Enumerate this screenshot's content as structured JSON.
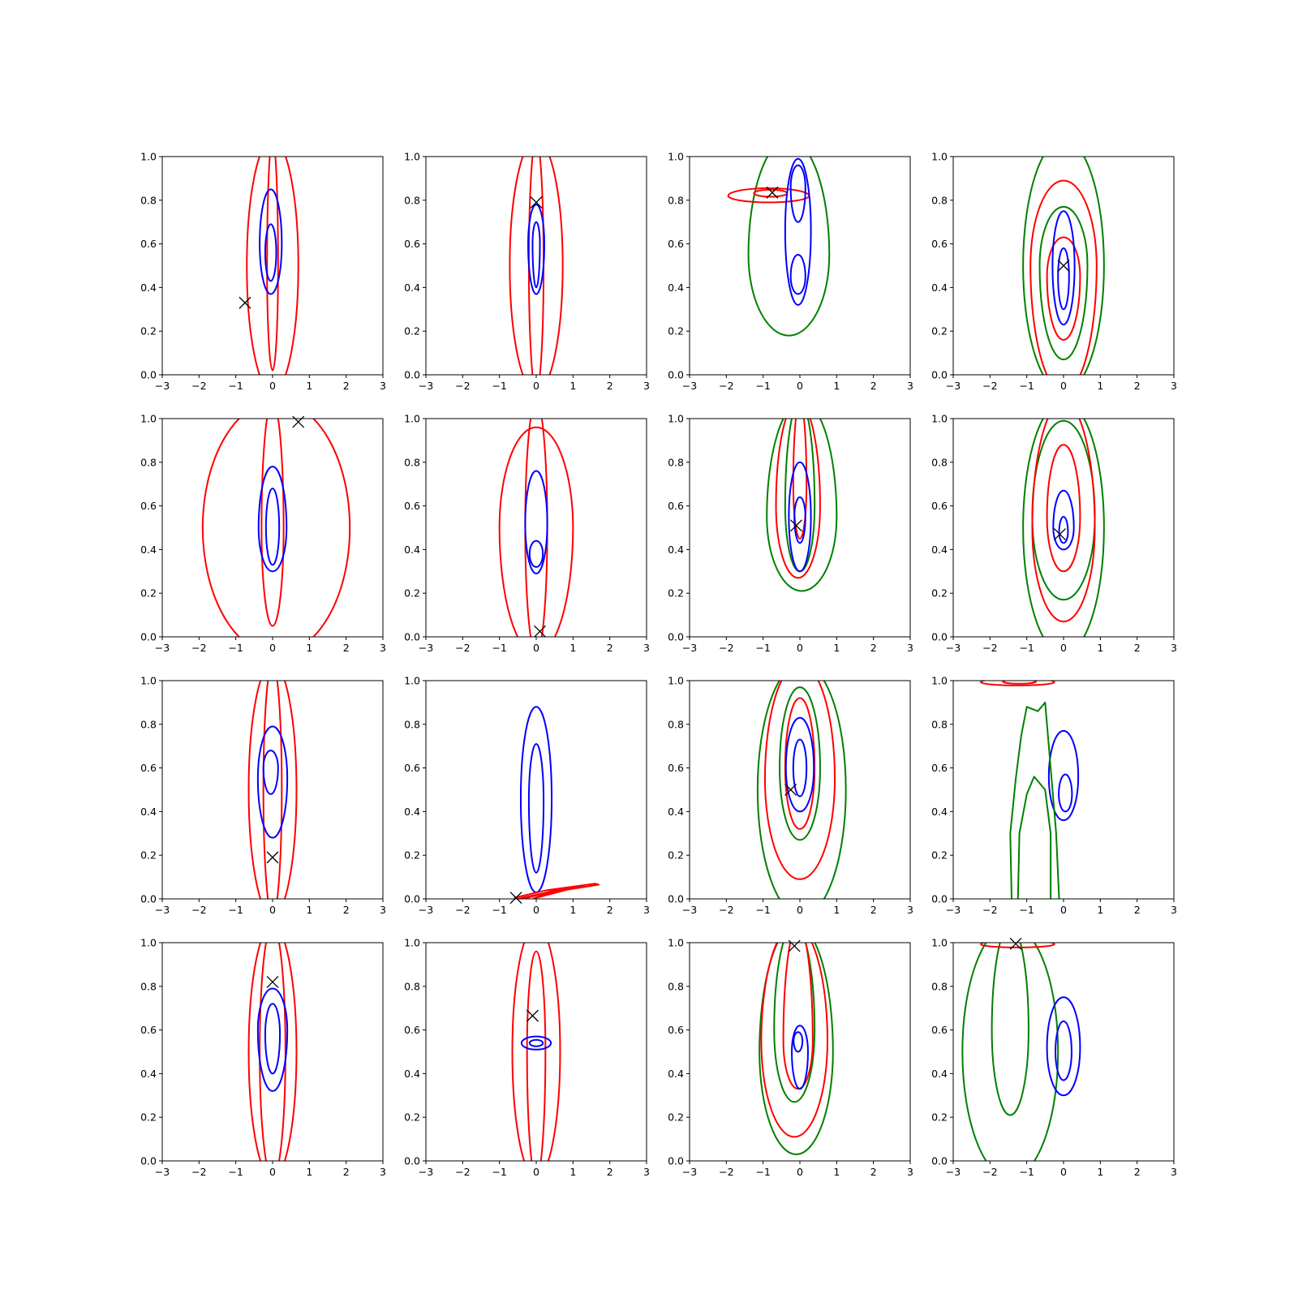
{
  "chart_data": {
    "type": "contour",
    "grid": {
      "rows": 4,
      "cols": 4
    },
    "xlim": [
      -3,
      3
    ],
    "ylim": [
      0,
      1
    ],
    "xticks": [
      "−3",
      "−2",
      "−1",
      "0",
      "1",
      "2",
      "3"
    ],
    "yticks": [
      "0.0",
      "0.2",
      "0.4",
      "0.6",
      "0.8",
      "1.0"
    ],
    "colors": {
      "red": "#ff0000",
      "blue": "#0000ff",
      "green": "#008000",
      "marker": "#000000"
    },
    "panels": [
      {
        "marker": [
          -0.75,
          0.33
        ],
        "contours": [
          {
            "color": "red",
            "cx": 0.0,
            "cy": 0.5,
            "hw": 0.7,
            "top": 1.08,
            "bottom": -0.08
          },
          {
            "color": "red",
            "cx": 0.0,
            "cy": 0.5,
            "hw": 0.15,
            "top": 1.08,
            "bottom": 0.02
          },
          {
            "color": "blue",
            "cx": -0.05,
            "cy": 0.6,
            "hw": 0.3,
            "top": 0.85,
            "bottom": 0.37
          },
          {
            "color": "blue",
            "cx": -0.05,
            "cy": 0.56,
            "hw": 0.15,
            "top": 0.69,
            "bottom": 0.43
          }
        ]
      },
      {
        "marker": [
          0.0,
          0.79
        ],
        "contours": [
          {
            "color": "red",
            "cx": 0.0,
            "cy": 0.5,
            "hw": 0.72,
            "top": 1.08,
            "bottom": -0.08
          },
          {
            "color": "red",
            "cx": 0.0,
            "cy": 0.5,
            "hw": 0.2,
            "top": 1.08,
            "bottom": -0.08
          },
          {
            "color": "blue",
            "cx": 0.0,
            "cy": 0.6,
            "hw": 0.22,
            "top": 0.78,
            "bottom": 0.37
          },
          {
            "color": "blue",
            "cx": 0.0,
            "cy": 0.6,
            "hw": 0.1,
            "top": 0.7,
            "bottom": 0.4
          }
        ]
      },
      {
        "marker": [
          -0.75,
          0.835
        ],
        "contours": [
          {
            "color": "green",
            "cx": -0.3,
            "cy": 0.55,
            "hw": 1.1,
            "top": 1.08,
            "bottom": 0.18
          },
          {
            "color": "red",
            "cx": -0.85,
            "cy": 0.82,
            "hw": 1.1,
            "top": 0.855,
            "bottom": 0.79
          },
          {
            "color": "red",
            "cx": -0.8,
            "cy": 0.832,
            "hw": 0.45,
            "top": 0.848,
            "bottom": 0.816
          },
          {
            "color": "blue",
            "cx": -0.05,
            "cy": 0.66,
            "hw": 0.35,
            "top": 0.99,
            "bottom": 0.32
          },
          {
            "color": "blue",
            "cx": -0.05,
            "cy": 0.86,
            "hw": 0.2,
            "top": 0.96,
            "bottom": 0.7
          },
          {
            "color": "blue",
            "cx": -0.05,
            "cy": 0.45,
            "hw": 0.2,
            "top": 0.55,
            "bottom": 0.37
          }
        ]
      },
      {
        "marker": [
          0.0,
          0.5
        ],
        "contours": [
          {
            "color": "green",
            "cx": 0.0,
            "cy": 0.5,
            "hw": 1.1,
            "top": 1.08,
            "bottom": -0.08
          },
          {
            "color": "red",
            "cx": 0.0,
            "cy": 0.5,
            "hw": 0.9,
            "top": 0.89,
            "bottom": -0.08
          },
          {
            "color": "green",
            "cx": 0.0,
            "cy": 0.5,
            "hw": 0.65,
            "top": 0.77,
            "bottom": 0.07
          },
          {
            "color": "red",
            "cx": 0.0,
            "cy": 0.45,
            "hw": 0.45,
            "top": 0.63,
            "bottom": 0.16
          },
          {
            "color": "blue",
            "cx": 0.0,
            "cy": 0.5,
            "hw": 0.3,
            "top": 0.75,
            "bottom": 0.23
          },
          {
            "color": "blue",
            "cx": 0.0,
            "cy": 0.45,
            "hw": 0.15,
            "top": 0.58,
            "bottom": 0.3
          }
        ]
      },
      {
        "marker": [
          0.7,
          0.985
        ],
        "contours": [
          {
            "color": "red",
            "cx": 0.1,
            "cy": 0.5,
            "hw": 2.0,
            "top": 1.08,
            "bottom": -0.08
          },
          {
            "color": "red",
            "cx": 0.0,
            "cy": 0.5,
            "hw": 0.3,
            "top": 1.08,
            "bottom": 0.05
          },
          {
            "color": "blue",
            "cx": 0.0,
            "cy": 0.5,
            "hw": 0.38,
            "top": 0.78,
            "bottom": 0.3
          },
          {
            "color": "blue",
            "cx": 0.0,
            "cy": 0.5,
            "hw": 0.18,
            "top": 0.68,
            "bottom": 0.33
          }
        ]
      },
      {
        "marker": [
          0.1,
          0.025
        ],
        "contours": [
          {
            "color": "red",
            "cx": 0.0,
            "cy": 0.5,
            "hw": 1.0,
            "top": 0.96,
            "bottom": -0.08
          },
          {
            "color": "red",
            "cx": 0.0,
            "cy": 0.5,
            "hw": 0.3,
            "top": 1.08,
            "bottom": -0.08
          },
          {
            "color": "blue",
            "cx": 0.0,
            "cy": 0.52,
            "hw": 0.3,
            "top": 0.76,
            "bottom": 0.29
          },
          {
            "color": "blue",
            "cx": 0.0,
            "cy": 0.38,
            "hw": 0.18,
            "top": 0.44,
            "bottom": 0.32
          }
        ]
      },
      {
        "marker": [
          -0.1,
          0.51
        ],
        "contours": [
          {
            "color": "green",
            "cx": 0.05,
            "cy": 0.55,
            "hw": 0.95,
            "top": 1.08,
            "bottom": 0.21
          },
          {
            "color": "red",
            "cx": -0.05,
            "cy": 0.6,
            "hw": 0.6,
            "top": 1.08,
            "bottom": 0.27
          },
          {
            "color": "green",
            "cx": 0.0,
            "cy": 0.6,
            "hw": 0.4,
            "top": 1.08,
            "bottom": 0.3
          },
          {
            "color": "red",
            "cx": 0.0,
            "cy": 0.7,
            "hw": 0.18,
            "top": 1.08,
            "bottom": 0.45
          },
          {
            "color": "blue",
            "cx": 0.0,
            "cy": 0.55,
            "hw": 0.3,
            "top": 0.8,
            "bottom": 0.3
          },
          {
            "color": "blue",
            "cx": 0.0,
            "cy": 0.55,
            "hw": 0.15,
            "top": 0.64,
            "bottom": 0.43
          }
        ]
      },
      {
        "marker": [
          -0.1,
          0.47
        ],
        "contours": [
          {
            "color": "green",
            "cx": 0.0,
            "cy": 0.5,
            "hw": 1.1,
            "top": 1.08,
            "bottom": -0.08
          },
          {
            "color": "green",
            "cx": 0.0,
            "cy": 0.55,
            "hw": 0.85,
            "top": 0.99,
            "bottom": 0.17
          },
          {
            "color": "red",
            "cx": 0.0,
            "cy": 0.5,
            "hw": 0.85,
            "top": 1.08,
            "bottom": 0.07
          },
          {
            "color": "red",
            "cx": 0.0,
            "cy": 0.55,
            "hw": 0.45,
            "top": 0.88,
            "bottom": 0.3
          },
          {
            "color": "blue",
            "cx": 0.0,
            "cy": 0.5,
            "hw": 0.28,
            "top": 0.67,
            "bottom": 0.4
          },
          {
            "color": "blue",
            "cx": 0.0,
            "cy": 0.48,
            "hw": 0.12,
            "top": 0.55,
            "bottom": 0.43
          }
        ]
      },
      {
        "marker": [
          0.0,
          0.19
        ],
        "contours": [
          {
            "color": "red",
            "cx": 0.0,
            "cy": 0.5,
            "hw": 0.65,
            "top": 1.08,
            "bottom": -0.08
          },
          {
            "color": "red",
            "cx": 0.0,
            "cy": 0.5,
            "hw": 0.25,
            "top": 1.08,
            "bottom": -0.08
          },
          {
            "color": "blue",
            "cx": 0.0,
            "cy": 0.55,
            "hw": 0.4,
            "top": 0.79,
            "bottom": 0.28
          },
          {
            "color": "blue",
            "cx": -0.05,
            "cy": 0.6,
            "hw": 0.2,
            "top": 0.68,
            "bottom": 0.48
          }
        ]
      },
      {
        "marker": [
          -0.55,
          0.005
        ],
        "contours": [
          {
            "color": "blue",
            "cx": 0.0,
            "cy": 0.46,
            "hw": 0.42,
            "top": 0.88,
            "bottom": 0.03
          },
          {
            "color": "blue",
            "cx": 0.0,
            "cy": 0.45,
            "hw": 0.2,
            "top": 0.71,
            "bottom": 0.12
          }
        ],
        "segments": [
          {
            "color": "red",
            "points": [
              [
                -0.6,
                0.005
              ],
              [
                0.3,
                0.04
              ],
              [
                1.6,
                0.07
              ],
              [
                1.7,
                0.065
              ],
              [
                0.2,
                0.025
              ],
              [
                -0.5,
                0.0
              ]
            ]
          },
          {
            "color": "red",
            "points": [
              [
                -0.4,
                0.005
              ],
              [
                0.6,
                0.04
              ],
              [
                1.3,
                0.06
              ],
              [
                0.4,
                0.035
              ],
              [
                -0.3,
                0.002
              ]
            ]
          },
          {
            "color": "red",
            "points": [
              [
                0.0,
                0.005
              ],
              [
                0.8,
                0.04
              ],
              [
                0.2,
                0.02
              ],
              [
                -0.1,
                0.0
              ]
            ]
          }
        ]
      },
      {
        "marker": [
          -0.25,
          0.5
        ],
        "contours": [
          {
            "color": "green",
            "cx": 0.05,
            "cy": 0.5,
            "hw": 1.2,
            "top": 1.08,
            "bottom": -0.08
          },
          {
            "color": "red",
            "cx": 0.0,
            "cy": 0.55,
            "hw": 0.95,
            "top": 1.08,
            "bottom": 0.09
          },
          {
            "color": "green",
            "cx": 0.0,
            "cy": 0.6,
            "hw": 0.55,
            "top": 0.97,
            "bottom": 0.27
          },
          {
            "color": "red",
            "cx": 0.0,
            "cy": 0.6,
            "hw": 0.4,
            "top": 0.92,
            "bottom": 0.32
          },
          {
            "color": "blue",
            "cx": 0.0,
            "cy": 0.6,
            "hw": 0.38,
            "top": 0.83,
            "bottom": 0.4
          },
          {
            "color": "blue",
            "cx": 0.0,
            "cy": 0.6,
            "hw": 0.18,
            "top": 0.73,
            "bottom": 0.47
          }
        ]
      },
      {
        "marker": null,
        "contours": [
          {
            "color": "red",
            "cx": -1.25,
            "cy": 0.993,
            "hw": 1.0,
            "top": 1.012,
            "bottom": 0.978
          },
          {
            "color": "red",
            "cx": -1.2,
            "cy": 0.996,
            "hw": 0.45,
            "top": 1.006,
            "bottom": 0.986
          },
          {
            "color": "blue",
            "cx": 0.0,
            "cy": 0.56,
            "hw": 0.4,
            "top": 0.77,
            "bottom": 0.36
          },
          {
            "color": "blue",
            "cx": 0.05,
            "cy": 0.48,
            "hw": 0.18,
            "top": 0.57,
            "bottom": 0.4
          }
        ],
        "segments": [
          {
            "color": "green",
            "points": [
              [
                -1.4,
                -0.08
              ],
              [
                -1.45,
                0.3
              ],
              [
                -1.3,
                0.55
              ],
              [
                -1.15,
                0.75
              ],
              [
                -1.0,
                0.88
              ],
              [
                -0.7,
                0.86
              ],
              [
                -0.5,
                0.9
              ],
              [
                -0.35,
                0.6
              ],
              [
                -0.2,
                0.3
              ],
              [
                -0.1,
                -0.08
              ]
            ]
          },
          {
            "color": "green",
            "points": [
              [
                -1.25,
                -0.08
              ],
              [
                -1.2,
                0.3
              ],
              [
                -1.0,
                0.48
              ],
              [
                -0.8,
                0.56
              ],
              [
                -0.5,
                0.5
              ],
              [
                -0.35,
                0.3
              ],
              [
                -0.35,
                -0.08
              ]
            ]
          }
        ]
      },
      {
        "marker": [
          0.0,
          0.82
        ],
        "contours": [
          {
            "color": "red",
            "cx": 0.0,
            "cy": 0.5,
            "hw": 0.65,
            "top": 1.08,
            "bottom": -0.08
          },
          {
            "color": "red",
            "cx": 0.0,
            "cy": 0.5,
            "hw": 0.35,
            "top": 1.08,
            "bottom": -0.08
          },
          {
            "color": "blue",
            "cx": 0.0,
            "cy": 0.6,
            "hw": 0.4,
            "top": 0.79,
            "bottom": 0.32
          },
          {
            "color": "blue",
            "cx": 0.0,
            "cy": 0.58,
            "hw": 0.2,
            "top": 0.72,
            "bottom": 0.4
          }
        ]
      },
      {
        "marker": [
          -0.1,
          0.665
        ],
        "contours": [
          {
            "color": "red",
            "cx": 0.0,
            "cy": 0.5,
            "hw": 0.65,
            "top": 1.08,
            "bottom": -0.08
          },
          {
            "color": "red",
            "cx": 0.0,
            "cy": 0.5,
            "hw": 0.25,
            "top": 0.96,
            "bottom": -0.08
          },
          {
            "color": "blue",
            "cx": 0.0,
            "cy": 0.54,
            "hw": 0.4,
            "top": 0.57,
            "bottom": 0.51
          },
          {
            "color": "blue",
            "cx": 0.0,
            "cy": 0.54,
            "hw": 0.18,
            "top": 0.555,
            "bottom": 0.525
          }
        ]
      },
      {
        "marker": [
          -0.15,
          0.985
        ],
        "contours": [
          {
            "color": "green",
            "cx": -0.1,
            "cy": 0.5,
            "hw": 1.0,
            "top": 1.08,
            "bottom": 0.03
          },
          {
            "color": "red",
            "cx": -0.15,
            "cy": 0.55,
            "hw": 0.9,
            "top": 1.08,
            "bottom": 0.11
          },
          {
            "color": "green",
            "cx": -0.15,
            "cy": 0.6,
            "hw": 0.55,
            "top": 1.08,
            "bottom": 0.27
          },
          {
            "color": "red",
            "cx": -0.05,
            "cy": 0.55,
            "hw": 0.4,
            "top": 1.08,
            "bottom": 0.33
          },
          {
            "color": "blue",
            "cx": 0.0,
            "cy": 0.5,
            "hw": 0.22,
            "top": 0.62,
            "bottom": 0.33
          },
          {
            "color": "blue",
            "cx": -0.05,
            "cy": 0.55,
            "hw": 0.12,
            "top": 0.59,
            "bottom": 0.5
          }
        ]
      },
      {
        "marker": [
          -1.3,
          0.995
        ],
        "contours": [
          {
            "color": "green",
            "cx": -1.45,
            "cy": 0.5,
            "hw": 1.3,
            "top": 1.08,
            "bottom": -0.08
          },
          {
            "color": "green",
            "cx": -1.45,
            "cy": 0.6,
            "hw": 0.5,
            "top": 1.08,
            "bottom": 0.21
          },
          {
            "color": "red",
            "cx": -1.25,
            "cy": 0.993,
            "hw": 1.0,
            "top": 1.012,
            "bottom": 0.978
          },
          {
            "color": "blue",
            "cx": 0.0,
            "cy": 0.52,
            "hw": 0.45,
            "top": 0.75,
            "bottom": 0.3
          },
          {
            "color": "blue",
            "cx": 0.0,
            "cy": 0.5,
            "hw": 0.22,
            "top": 0.64,
            "bottom": 0.37
          }
        ]
      }
    ]
  }
}
